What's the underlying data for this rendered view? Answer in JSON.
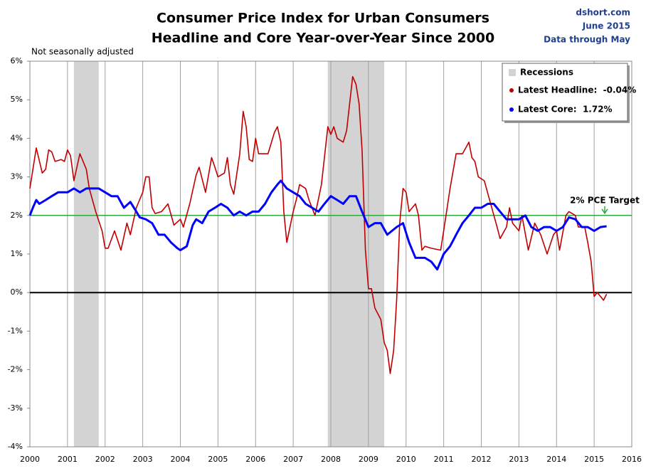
{
  "chart_data": {
    "type": "line",
    "title": "Consumer Price Index for Urban Consumers",
    "subtitle": "Headline and Core Year-over-Year Since 2000",
    "source": [
      "dshort.com",
      "June 2015",
      "Data through May"
    ],
    "note": "Not seasonally adjusted",
    "xlim": [
      2000,
      2016
    ],
    "xticks": [
      2000,
      2001,
      2002,
      2003,
      2004,
      2005,
      2006,
      2007,
      2008,
      2009,
      2010,
      2011,
      2012,
      2013,
      2014,
      2015,
      2016
    ],
    "ylim": [
      -4,
      6
    ],
    "yticks": [
      {
        "value": -4,
        "label": "-4%"
      },
      {
        "value": -3,
        "label": "-3%"
      },
      {
        "value": -2,
        "label": "-2%"
      },
      {
        "value": -1,
        "label": "-1%"
      },
      {
        "value": 0,
        "label": "0%"
      },
      {
        "value": 1,
        "label": "1%"
      },
      {
        "value": 2,
        "label": "2%"
      },
      {
        "value": 3,
        "label": "3%"
      },
      {
        "value": 4,
        "label": "4%"
      },
      {
        "value": 5,
        "label": "5%"
      },
      {
        "value": 6,
        "label": "6%"
      }
    ],
    "grid": "x",
    "recessions": {
      "name": "Recessions",
      "color": "#d3d3d3",
      "spans": [
        [
          2001.17,
          2001.83
        ],
        [
          2007.92,
          2009.42
        ]
      ]
    },
    "reference_lines": [
      {
        "value": 2,
        "color": "#2eaa3e",
        "label": "2% PCE Target"
      },
      {
        "value": 0,
        "color": "#000000"
      }
    ],
    "legend": "upper right",
    "series": [
      {
        "name": "Latest Headline:  -0.04%",
        "color": "#c00000",
        "width": 1.6,
        "x": [
          2000.0,
          2000.17,
          2000.33,
          2000.42,
          2000.5,
          2000.58,
          2000.67,
          2000.83,
          2000.92,
          2001.0,
          2001.08,
          2001.17,
          2001.33,
          2001.5,
          2001.58,
          2001.75,
          2001.92,
          2002.0,
          2002.08,
          2002.25,
          2002.42,
          2002.58,
          2002.67,
          2002.83,
          2003.0,
          2003.08,
          2003.17,
          2003.25,
          2003.33,
          2003.5,
          2003.67,
          2003.83,
          2004.0,
          2004.08,
          2004.25,
          2004.42,
          2004.5,
          2004.67,
          2004.83,
          2004.92,
          2005.0,
          2005.17,
          2005.25,
          2005.33,
          2005.42,
          2005.58,
          2005.67,
          2005.75,
          2005.83,
          2005.92,
          2006.0,
          2006.08,
          2006.33,
          2006.5,
          2006.58,
          2006.67,
          2006.75,
          2006.83,
          2007.0,
          2007.08,
          2007.17,
          2007.33,
          2007.42,
          2007.58,
          2007.75,
          2007.92,
          2008.0,
          2008.08,
          2008.17,
          2008.33,
          2008.42,
          2008.58,
          2008.67,
          2008.75,
          2008.83,
          2008.92,
          2009.0,
          2009.08,
          2009.17,
          2009.33,
          2009.42,
          2009.5,
          2009.58,
          2009.67,
          2009.75,
          2009.83,
          2009.92,
          2010.0,
          2010.08,
          2010.25,
          2010.33,
          2010.42,
          2010.5,
          2010.67,
          2010.92,
          2011.0,
          2011.17,
          2011.33,
          2011.5,
          2011.67,
          2011.75,
          2011.83,
          2011.92,
          2012.08,
          2012.25,
          2012.42,
          2012.5,
          2012.67,
          2012.75,
          2012.83,
          2012.92,
          2013.0,
          2013.08,
          2013.25,
          2013.42,
          2013.58,
          2013.75,
          2013.92,
          2014.0,
          2014.08,
          2014.25,
          2014.33,
          2014.5,
          2014.58,
          2014.75,
          2014.83,
          2014.92,
          2015.0,
          2015.08,
          2015.17,
          2015.25,
          2015.33
        ],
        "values": [
          2.7,
          3.75,
          3.1,
          3.2,
          3.7,
          3.65,
          3.4,
          3.45,
          3.4,
          3.7,
          3.55,
          2.9,
          3.6,
          3.2,
          2.7,
          2.1,
          1.6,
          1.15,
          1.15,
          1.6,
          1.1,
          1.8,
          1.5,
          2.2,
          2.6,
          3.0,
          3.0,
          2.2,
          2.05,
          2.1,
          2.3,
          1.75,
          1.9,
          1.7,
          2.3,
          3.05,
          3.25,
          2.6,
          3.5,
          3.25,
          3.0,
          3.1,
          3.5,
          2.8,
          2.55,
          3.6,
          4.7,
          4.3,
          3.45,
          3.4,
          4.0,
          3.6,
          3.6,
          4.15,
          4.3,
          3.9,
          2.1,
          1.3,
          2.1,
          2.4,
          2.8,
          2.7,
          2.4,
          2.0,
          2.8,
          4.3,
          4.1,
          4.3,
          4.0,
          3.9,
          4.2,
          5.6,
          5.4,
          4.9,
          3.7,
          1.1,
          0.1,
          0.1,
          -0.4,
          -0.7,
          -1.3,
          -1.5,
          -2.1,
          -1.5,
          -0.2,
          1.8,
          2.7,
          2.6,
          2.1,
          2.3,
          2.0,
          1.1,
          1.2,
          1.15,
          1.1,
          1.6,
          2.7,
          3.6,
          3.6,
          3.9,
          3.5,
          3.4,
          3.0,
          2.9,
          2.3,
          1.7,
          1.4,
          1.7,
          2.2,
          1.8,
          1.7,
          1.6,
          2.0,
          1.1,
          1.8,
          1.5,
          1.0,
          1.5,
          1.6,
          1.1,
          2.0,
          2.1,
          2.0,
          1.7,
          1.7,
          1.3,
          0.8,
          -0.1,
          0.0,
          -0.1,
          -0.2,
          -0.04
        ]
      },
      {
        "name": "Latest Core:  1.72%",
        "color": "#0000ff",
        "width": 3,
        "x": [
          2000.0,
          2000.08,
          2000.17,
          2000.25,
          2000.42,
          2000.58,
          2000.75,
          2000.92,
          2001.0,
          2001.17,
          2001.33,
          2001.5,
          2001.67,
          2001.83,
          2002.0,
          2002.17,
          2002.33,
          2002.5,
          2002.67,
          2002.83,
          2002.92,
          2003.08,
          2003.25,
          2003.42,
          2003.58,
          2003.75,
          2003.92,
          2004.0,
          2004.17,
          2004.33,
          2004.42,
          2004.58,
          2004.75,
          2004.92,
          2005.08,
          2005.25,
          2005.42,
          2005.58,
          2005.75,
          2005.92,
          2006.08,
          2006.25,
          2006.42,
          2006.58,
          2006.67,
          2006.83,
          2007.0,
          2007.17,
          2007.33,
          2007.5,
          2007.67,
          2007.83,
          2008.0,
          2008.17,
          2008.33,
          2008.5,
          2008.67,
          2008.83,
          2009.0,
          2009.17,
          2009.33,
          2009.5,
          2009.75,
          2009.92,
          2010.08,
          2010.25,
          2010.5,
          2010.67,
          2010.83,
          2011.0,
          2011.17,
          2011.33,
          2011.5,
          2011.67,
          2011.83,
          2012.0,
          2012.17,
          2012.33,
          2012.5,
          2012.67,
          2012.83,
          2013.0,
          2013.17,
          2013.33,
          2013.5,
          2013.67,
          2013.83,
          2014.0,
          2014.17,
          2014.33,
          2014.5,
          2014.67,
          2014.83,
          2015.0,
          2015.17,
          2015.33
        ],
        "values": [
          2.0,
          2.2,
          2.4,
          2.3,
          2.4,
          2.5,
          2.6,
          2.6,
          2.6,
          2.7,
          2.6,
          2.7,
          2.7,
          2.7,
          2.6,
          2.5,
          2.5,
          2.2,
          2.35,
          2.1,
          1.95,
          1.9,
          1.8,
          1.5,
          1.5,
          1.3,
          1.15,
          1.1,
          1.2,
          1.75,
          1.9,
          1.8,
          2.1,
          2.2,
          2.3,
          2.2,
          2.0,
          2.1,
          2.0,
          2.1,
          2.1,
          2.3,
          2.6,
          2.8,
          2.9,
          2.7,
          2.6,
          2.5,
          2.3,
          2.2,
          2.1,
          2.3,
          2.5,
          2.4,
          2.3,
          2.5,
          2.5,
          2.1,
          1.7,
          1.8,
          1.8,
          1.5,
          1.7,
          1.8,
          1.3,
          0.9,
          0.9,
          0.8,
          0.6,
          1.0,
          1.2,
          1.5,
          1.8,
          2.0,
          2.2,
          2.2,
          2.3,
          2.3,
          2.1,
          1.9,
          1.9,
          1.9,
          2.0,
          1.7,
          1.6,
          1.7,
          1.7,
          1.6,
          1.7,
          1.95,
          1.9,
          1.7,
          1.7,
          1.6,
          1.7,
          1.72
        ]
      }
    ]
  }
}
